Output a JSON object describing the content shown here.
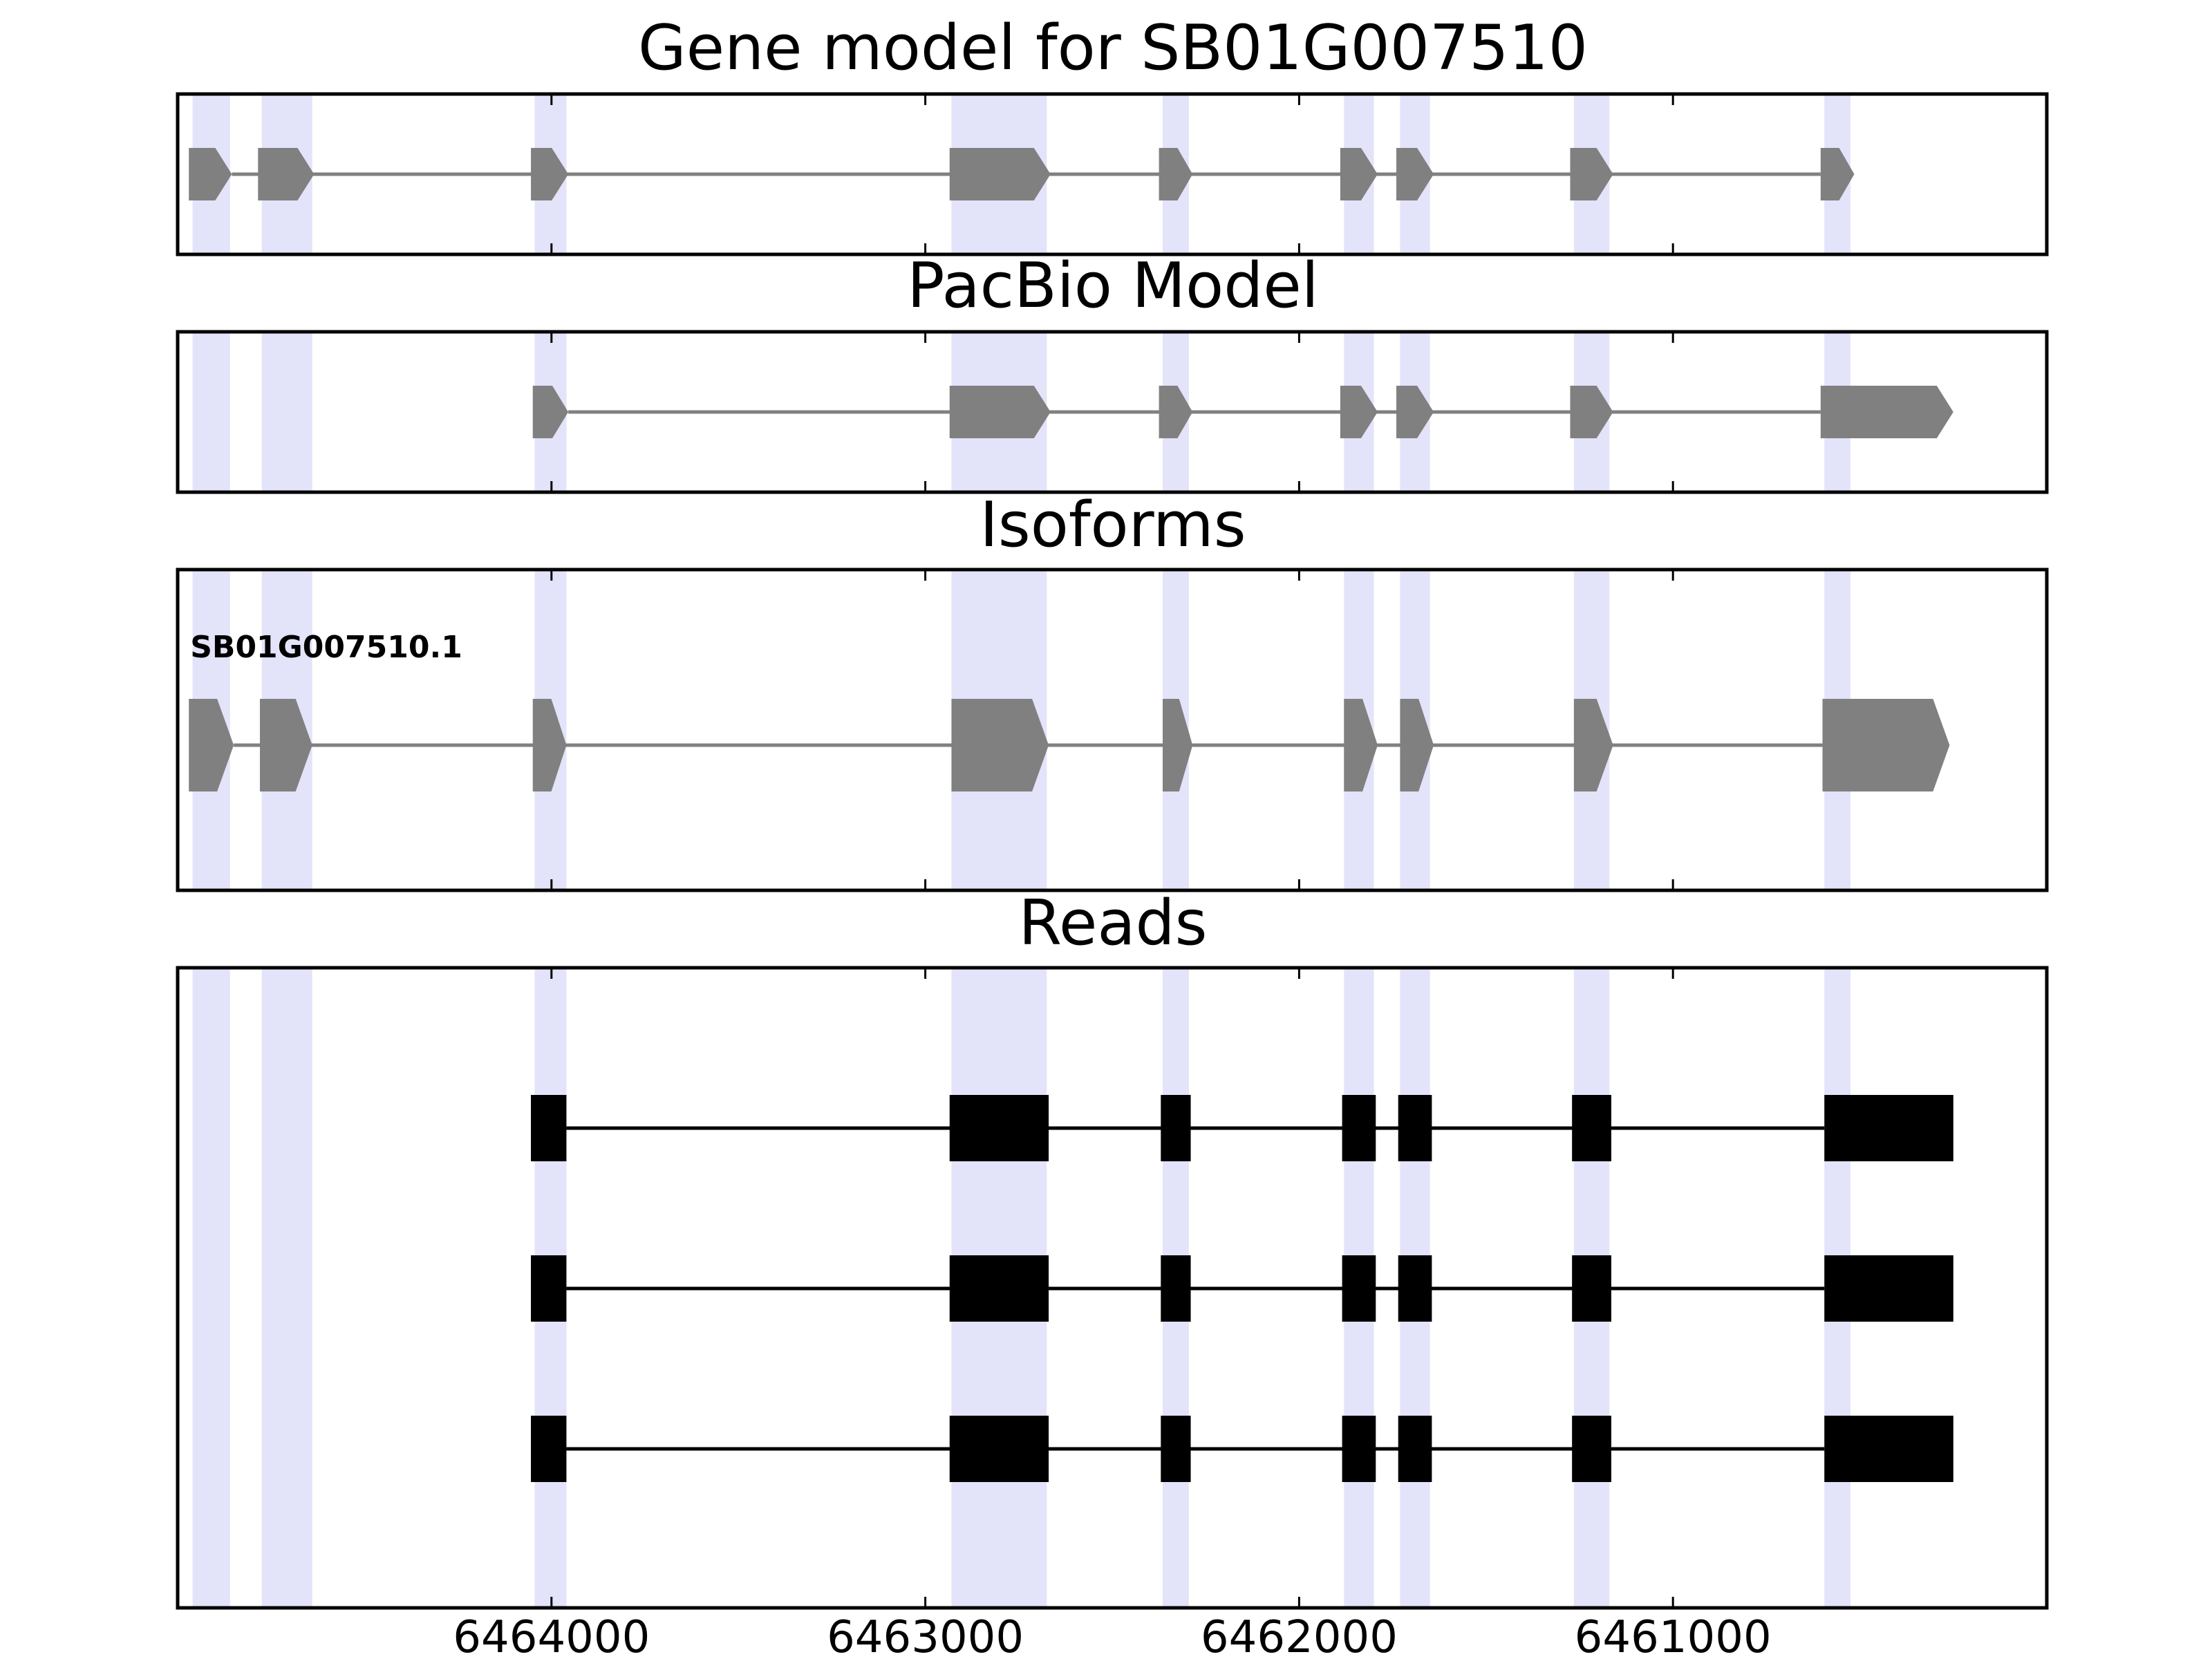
{
  "colors": {
    "exon_shade": "#e3e3fa",
    "model_feature": "#808080",
    "read_feature": "#000000",
    "axis": "#000000",
    "background": "#ffffff"
  },
  "chart_data": [
    {
      "type": "gene-model",
      "title": "Gene model for SB01G007510",
      "xlim": [
        6465000,
        6460000
      ],
      "xticks": [
        6464000,
        6463000,
        6462000,
        6461000
      ],
      "tick_labels": [
        "6464000",
        "6463000",
        "6462000",
        "6461000"
      ],
      "exon_regions": [
        [
          6464960,
          6464860
        ],
        [
          6464775,
          6464640
        ],
        [
          6464045,
          6463960
        ],
        [
          6462930,
          6462675
        ],
        [
          6462365,
          6462295
        ],
        [
          6461880,
          6461800
        ],
        [
          6461730,
          6461650
        ],
        [
          6461265,
          6461170
        ],
        [
          6460595,
          6460525
        ]
      ],
      "tracks": [
        {
          "exons": [
            [
              6464970,
              6464855
            ],
            [
              6464785,
              6464635
            ],
            [
              6464055,
              6463955
            ],
            [
              6462935,
              6462665
            ],
            [
              6462375,
              6462285
            ],
            [
              6461890,
              6461790
            ],
            [
              6461740,
              6461640
            ],
            [
              6461275,
              6461160
            ],
            [
              6460605,
              6460515
            ]
          ]
        }
      ]
    },
    {
      "type": "gene-model",
      "title": "PacBio Model",
      "tracks": [
        {
          "exons": [
            [
              6464050,
              6463955
            ],
            [
              6462935,
              6462665
            ],
            [
              6462375,
              6462285
            ],
            [
              6461890,
              6461790
            ],
            [
              6461740,
              6461640
            ],
            [
              6461275,
              6461160
            ],
            [
              6460605,
              6460250
            ]
          ]
        }
      ]
    },
    {
      "type": "gene-model",
      "title": "Isoforms",
      "tracks": [
        {
          "label": "SB01G007510.1",
          "exons": [
            [
              6464970,
              6464850
            ],
            [
              6464780,
              6464640
            ],
            [
              6464050,
              6463960
            ],
            [
              6462930,
              6462670
            ],
            [
              6462365,
              6462285
            ],
            [
              6461880,
              6461790
            ],
            [
              6461730,
              6461640
            ],
            [
              6461265,
              6461160
            ],
            [
              6460600,
              6460260
            ]
          ]
        }
      ]
    },
    {
      "type": "gene-model",
      "title": "Reads",
      "tracks": [
        {
          "exons": [
            [
              6464055,
              6463960
            ],
            [
              6462935,
              6462670
            ],
            [
              6462370,
              6462290
            ],
            [
              6461885,
              6461795
            ],
            [
              6461735,
              6461645
            ],
            [
              6461270,
              6461165
            ],
            [
              6460595,
              6460250
            ]
          ]
        },
        {
          "exons": [
            [
              6464055,
              6463960
            ],
            [
              6462935,
              6462670
            ],
            [
              6462370,
              6462290
            ],
            [
              6461885,
              6461795
            ],
            [
              6461735,
              6461645
            ],
            [
              6461270,
              6461165
            ],
            [
              6460595,
              6460250
            ]
          ]
        },
        {
          "exons": [
            [
              6464055,
              6463960
            ],
            [
              6462935,
              6462670
            ],
            [
              6462370,
              6462290
            ],
            [
              6461885,
              6461795
            ],
            [
              6461735,
              6461645
            ],
            [
              6461270,
              6461165
            ],
            [
              6460595,
              6460250
            ]
          ]
        }
      ]
    }
  ]
}
